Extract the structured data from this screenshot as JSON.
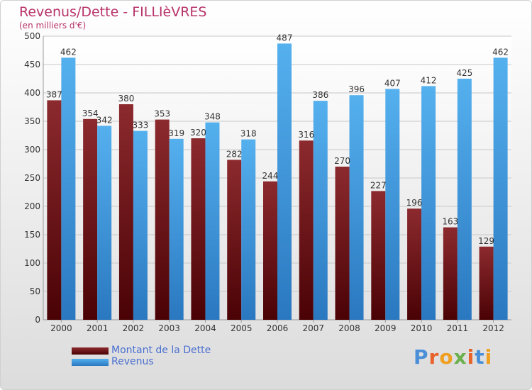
{
  "title": "Revenus/Dette - FILLIèVRES",
  "subtitle": "(en milliers d'€)",
  "logo": "Proxiti",
  "colors": {
    "dette": "#7a1a1e",
    "revenus": "#49a6e8",
    "title": "#b8336a",
    "legend_text": "#4a6fd0"
  },
  "chart_data": {
    "type": "bar",
    "categories": [
      "2000",
      "2001",
      "2002",
      "2003",
      "2004",
      "2005",
      "2006",
      "2007",
      "2008",
      "2009",
      "2010",
      "2011",
      "2012"
    ],
    "series": [
      {
        "name": "Montant de la Dette",
        "values": [
          387,
          354,
          380,
          353,
          320,
          282,
          244,
          316,
          270,
          227,
          196,
          163,
          129
        ]
      },
      {
        "name": "Revenus",
        "values": [
          462,
          342,
          333,
          319,
          348,
          318,
          487,
          386,
          396,
          407,
          412,
          425,
          462
        ]
      }
    ],
    "ylim": [
      0,
      500
    ],
    "yticks": [
      0,
      50,
      100,
      150,
      200,
      250,
      300,
      350,
      400,
      450,
      500
    ],
    "grid": true,
    "legend_position": "bottom-left"
  }
}
